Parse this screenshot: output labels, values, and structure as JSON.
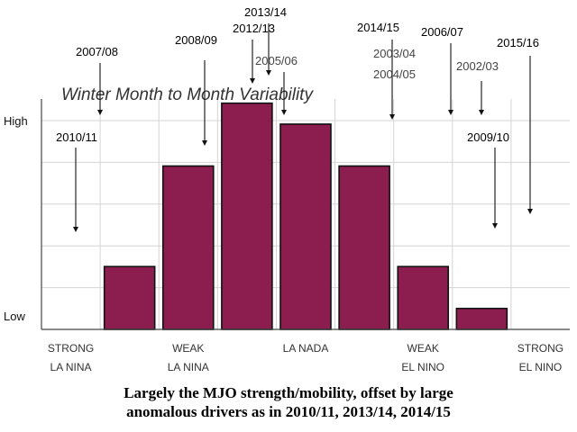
{
  "chart_data": {
    "type": "bar",
    "title": "Winter Month to Month Variability",
    "categories": [
      "STRONG LA NINA",
      "",
      "WEAK LA NINA",
      "",
      "LA NADA",
      "",
      "WEAK EL NINO",
      "",
      "STRONG EL NINO"
    ],
    "category_labels": [
      {
        "line1": "STRONG",
        "line2": "LA NINA"
      },
      {
        "line1": "WEAK",
        "line2": "LA NINA"
      },
      {
        "line1": "",
        "line2": "LA NADA"
      },
      {
        "line1": "WEAK",
        "line2": "EL NINO"
      },
      {
        "line1": "STRONG",
        "line2": "EL NINO"
      }
    ],
    "values": [
      0,
      1.5,
      3.9,
      5.4,
      4.9,
      3.9,
      1.5,
      0.5,
      0
    ],
    "y_tick_labels": {
      "high": "High",
      "low": "Low"
    },
    "ylim": [
      0,
      5.5
    ],
    "grid": true,
    "bar_color": "#8b1e4e",
    "annotations": [
      {
        "label": "2010/11",
        "x": 0.1,
        "y_point": 2.3,
        "style": "black"
      },
      {
        "label": "2007/08",
        "x": 0.6,
        "y_point": 5.5,
        "style": "black"
      },
      {
        "label": "2008/09",
        "x": 2.3,
        "y_point": 4.7,
        "style": "black"
      },
      {
        "label": "2013/14",
        "x": 3.2,
        "y_point": 6.7,
        "style": "black"
      },
      {
        "label": "2012/13",
        "x": 3.0,
        "y_point": 6.3,
        "style": "black"
      },
      {
        "label": "2005/06",
        "x": 3.6,
        "y_point": 5.5,
        "style": "grey"
      },
      {
        "label": "2014/15",
        "x": 5.5,
        "y_point": 5.3,
        "style": "black"
      },
      {
        "label": "2003/04",
        "x": 5.5,
        "y_point": 5.3,
        "style": "grey"
      },
      {
        "label": "2004/05",
        "x": 5.5,
        "y_point": 5.3,
        "style": "grey"
      },
      {
        "label": "2006/07",
        "x": 6.3,
        "y_point": 5.5,
        "style": "black"
      },
      {
        "label": "2002/03",
        "x": 6.8,
        "y_point": 5.5,
        "style": "grey"
      },
      {
        "label": "2009/10",
        "x": 7.1,
        "y_point": 2.5,
        "style": "black"
      },
      {
        "label": "2015/16",
        "x": 8.1,
        "y_point": 2.9,
        "style": "black"
      }
    ]
  },
  "caption": {
    "line1": "Largely the MJO strength/mobility, offset by large",
    "line2": "anomalous drivers as in 2010/11, 2013/14, 2014/15"
  }
}
